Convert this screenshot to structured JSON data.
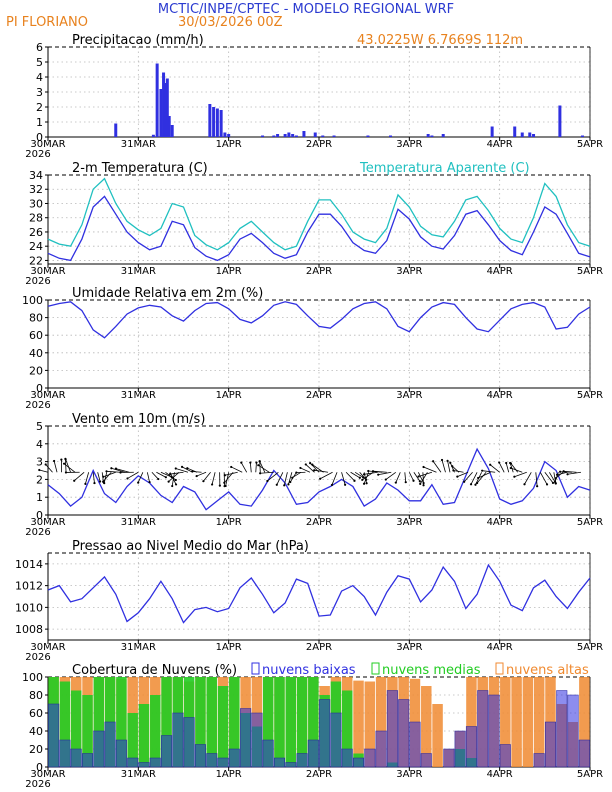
{
  "header": {
    "title": "MCTIC/INPE/CPTEC - MODELO REGIONAL WRF",
    "station": "PI FLORIANO",
    "run": "30/03/2026 00Z",
    "coords": "43.0225W 6.7669S 112m"
  },
  "colors": {
    "blue": "#3030e0",
    "cyan": "#20c0c0",
    "orange": "#f08a30",
    "green": "#22cc22",
    "title_blue": "#2a3ad0",
    "header_orange": "#e8821e"
  },
  "x_axis": {
    "ticks": [
      "30MAR",
      "31MAR",
      "1APR",
      "2APR",
      "3APR",
      "4APR",
      "5APR"
    ],
    "year": "2026",
    "hours_total": 144
  },
  "chart_data": [
    {
      "id": "precip",
      "type": "bar",
      "title": "Precipitacao (mm/h)",
      "ylim": [
        0,
        6
      ],
      "yticks": [
        0,
        1,
        2,
        3,
        4,
        5,
        6
      ],
      "series": [
        {
          "hours": [
            18,
            28,
            29,
            30,
            30.7,
            31.2,
            31.7,
            32.2,
            33,
            43,
            44,
            45,
            46,
            47,
            48,
            57,
            60,
            61,
            63,
            64,
            65,
            66,
            68,
            71,
            73,
            76,
            85,
            91,
            101,
            102,
            105,
            118,
            124,
            126,
            128,
            129,
            136,
            142
          ],
          "values": [
            0.9,
            0.15,
            4.9,
            3.2,
            4.3,
            3.6,
            3.9,
            1.4,
            0.8,
            2.2,
            2.0,
            1.9,
            1.8,
            0.3,
            0.2,
            0.1,
            0.1,
            0.2,
            0.2,
            0.3,
            0.2,
            0.1,
            0.4,
            0.3,
            0.1,
            0.1,
            0.1,
            0.1,
            0.2,
            0.1,
            0.2,
            0.7,
            0.7,
            0.3,
            0.3,
            0.2,
            2.1,
            0.1
          ]
        }
      ]
    },
    {
      "id": "temp",
      "type": "line",
      "title": "2-m Temperatura (C)",
      "ylim": [
        21.5,
        34
      ],
      "yticks": [
        22,
        24,
        26,
        28,
        30,
        32,
        34
      ],
      "series": [
        {
          "name": "Temperatura Aparente (C)",
          "x": [
            0,
            3,
            6,
            9,
            12,
            15,
            18,
            21,
            24,
            27,
            30,
            33,
            36,
            39,
            42,
            45,
            48,
            51,
            54,
            57,
            60,
            63,
            66,
            69,
            72,
            75,
            78,
            81,
            84,
            87,
            90,
            93,
            96,
            99,
            102,
            105,
            108,
            111,
            114,
            117,
            120,
            123,
            126,
            129,
            132,
            135,
            138,
            141,
            144
          ],
          "y": [
            25,
            24.3,
            24,
            27,
            32,
            33.5,
            30,
            27.5,
            26.3,
            25.5,
            26.5,
            30,
            29.5,
            25.5,
            24.2,
            23.5,
            24.5,
            26.5,
            27.5,
            26,
            24.5,
            23.5,
            24,
            27.5,
            30.5,
            30.5,
            28.5,
            26,
            25,
            24.5,
            26.5,
            31.2,
            29.5,
            26.8,
            25.6,
            25.3,
            27.5,
            30.5,
            31,
            29,
            26.5,
            25,
            24.5,
            28,
            32.8,
            31,
            27,
            24.5,
            24
          ]
        },
        {
          "name": "2-m Temperatura (C)",
          "x": [
            0,
            3,
            6,
            9,
            12,
            15,
            18,
            21,
            24,
            27,
            30,
            33,
            36,
            39,
            42,
            45,
            48,
            51,
            54,
            57,
            60,
            63,
            66,
            69,
            72,
            75,
            78,
            81,
            84,
            87,
            90,
            93,
            96,
            99,
            102,
            105,
            108,
            111,
            114,
            117,
            120,
            123,
            126,
            129,
            132,
            135,
            138,
            141,
            144
          ],
          "y": [
            23,
            22.3,
            22,
            25,
            29.5,
            31,
            28.5,
            26,
            24.5,
            23.5,
            24,
            27.5,
            27,
            23.8,
            22.6,
            22,
            22.8,
            25,
            25.8,
            24.5,
            23,
            22.3,
            22.8,
            26,
            28.5,
            28.5,
            26.8,
            24.5,
            23.4,
            23,
            24.8,
            29.2,
            27.8,
            25.3,
            24,
            23.6,
            25.5,
            28.5,
            29,
            27,
            24.8,
            23.4,
            22.8,
            26,
            29.5,
            28.5,
            25.8,
            23,
            22.5
          ]
        }
      ]
    },
    {
      "id": "rh",
      "type": "line",
      "title": "Umidade Relativa em 2m (%)",
      "ylim": [
        0,
        100
      ],
      "yticks": [
        0,
        20,
        40,
        60,
        80,
        100
      ],
      "series": [
        {
          "x": [
            0,
            3,
            6,
            9,
            12,
            15,
            18,
            21,
            24,
            27,
            30,
            33,
            36,
            39,
            42,
            45,
            48,
            51,
            54,
            57,
            60,
            63,
            66,
            69,
            72,
            75,
            78,
            81,
            84,
            87,
            90,
            93,
            96,
            99,
            102,
            105,
            108,
            111,
            114,
            117,
            120,
            123,
            126,
            129,
            132,
            135,
            138,
            141,
            144
          ],
          "y": [
            93,
            96,
            98,
            88,
            66,
            57,
            70,
            84,
            91,
            94,
            92,
            82,
            76,
            88,
            96,
            97,
            90,
            78,
            74,
            82,
            94,
            98,
            95,
            82,
            70,
            68,
            78,
            90,
            96,
            98,
            90,
            70,
            64,
            80,
            92,
            97,
            95,
            80,
            67,
            64,
            77,
            90,
            95,
            97,
            92,
            67,
            69,
            84,
            92
          ]
        }
      ]
    },
    {
      "id": "wind",
      "type": "line",
      "title": "Vento em 10m (m/s)",
      "ylim": [
        0,
        5
      ],
      "yticks": [
        0,
        1,
        2,
        3,
        4,
        5
      ],
      "series": [
        {
          "x": [
            0,
            3,
            6,
            9,
            12,
            15,
            18,
            21,
            24,
            27,
            30,
            33,
            36,
            39,
            42,
            45,
            48,
            51,
            54,
            57,
            60,
            63,
            66,
            69,
            72,
            75,
            78,
            81,
            84,
            87,
            90,
            93,
            96,
            99,
            102,
            105,
            108,
            111,
            114,
            117,
            120,
            123,
            126,
            129,
            132,
            135,
            138,
            141,
            144
          ],
          "y": [
            1.7,
            1.2,
            0.5,
            1.0,
            2.5,
            1.2,
            0.7,
            1.6,
            2.2,
            1.8,
            1.1,
            0.7,
            1.6,
            1.3,
            0.3,
            0.8,
            1.3,
            0.6,
            0.5,
            1.4,
            2.5,
            1.8,
            0.6,
            0.7,
            1.3,
            1.6,
            2.0,
            1.6,
            0.5,
            0.9,
            1.8,
            1.4,
            0.8,
            0.8,
            1.7,
            0.6,
            0.7,
            2.2,
            3.7,
            2.6,
            0.9,
            0.6,
            0.8,
            1.5,
            3.0,
            2.5,
            1.0,
            1.6,
            1.4
          ]
        }
      ]
    },
    {
      "id": "pressure",
      "type": "line",
      "title": "Pressao ao Nivel Medio do Mar (hPa)",
      "ylim": [
        1007,
        1015
      ],
      "yticks": [
        1008,
        1010,
        1012,
        1014
      ],
      "series": [
        {
          "x": [
            0,
            3,
            6,
            9,
            12,
            15,
            18,
            21,
            24,
            27,
            30,
            33,
            36,
            39,
            42,
            45,
            48,
            51,
            54,
            57,
            60,
            63,
            66,
            69,
            72,
            75,
            78,
            81,
            84,
            87,
            90,
            93,
            96,
            99,
            102,
            105,
            108,
            111,
            114,
            117,
            120,
            123,
            126,
            129,
            132,
            135,
            138,
            141,
            144
          ],
          "y": [
            1011.6,
            1012.0,
            1010.5,
            1010.8,
            1011.8,
            1012.8,
            1011.2,
            1008.7,
            1009.5,
            1010.8,
            1012.4,
            1010.8,
            1008.6,
            1009.8,
            1010.0,
            1009.6,
            1009.9,
            1011.8,
            1012.7,
            1011.2,
            1009.5,
            1010.4,
            1012.6,
            1012.2,
            1009.2,
            1009.3,
            1011.5,
            1012.0,
            1011.0,
            1009.3,
            1011.4,
            1012.9,
            1012.6,
            1010.5,
            1011.6,
            1013.7,
            1012.4,
            1009.9,
            1011.2,
            1013.9,
            1012.4,
            1010.2,
            1009.7,
            1011.8,
            1012.5,
            1011.0,
            1009.9,
            1011.4,
            1012.7
          ]
        }
      ]
    },
    {
      "id": "clouds",
      "type": "bar",
      "title": "Cobertura de Nuvens (%)",
      "legend": [
        "nuvens baixas",
        "nuvens medias",
        "nuvens altas"
      ],
      "ylim": [
        0,
        100
      ],
      "yticks": [
        0,
        20,
        40,
        60,
        80,
        100
      ],
      "series": [
        {
          "name": "nuvens altas",
          "y": [
            100,
            100,
            100,
            100,
            100,
            100,
            98,
            100,
            100,
            100,
            100,
            100,
            95,
            100,
            100,
            100,
            100,
            100,
            100,
            100,
            100,
            100,
            100,
            100,
            90,
            100,
            100,
            96,
            95,
            100,
            100,
            100,
            98,
            90,
            70,
            20,
            40,
            100,
            100,
            100,
            100,
            100,
            100,
            100,
            100,
            70,
            50,
            100
          ]
        },
        {
          "name": "nuvens medias",
          "y": [
            100,
            95,
            85,
            80,
            100,
            100,
            100,
            60,
            70,
            80,
            100,
            100,
            100,
            100,
            100,
            90,
            100,
            60,
            45,
            100,
            100,
            100,
            100,
            100,
            80,
            95,
            85,
            15,
            0,
            0,
            5,
            0,
            0,
            0,
            0,
            0,
            20,
            10,
            0,
            0,
            0,
            0,
            0,
            0,
            0,
            0,
            0,
            0
          ]
        },
        {
          "name": "nuvens baixas",
          "y": [
            70,
            30,
            20,
            15,
            40,
            50,
            30,
            10,
            5,
            10,
            35,
            60,
            55,
            25,
            15,
            10,
            20,
            65,
            60,
            30,
            10,
            5,
            15,
            30,
            75,
            60,
            20,
            10,
            20,
            40,
            85,
            75,
            50,
            15,
            0,
            20,
            40,
            45,
            85,
            80,
            25,
            0,
            0,
            15,
            50,
            85,
            80,
            30
          ]
        }
      ]
    }
  ]
}
